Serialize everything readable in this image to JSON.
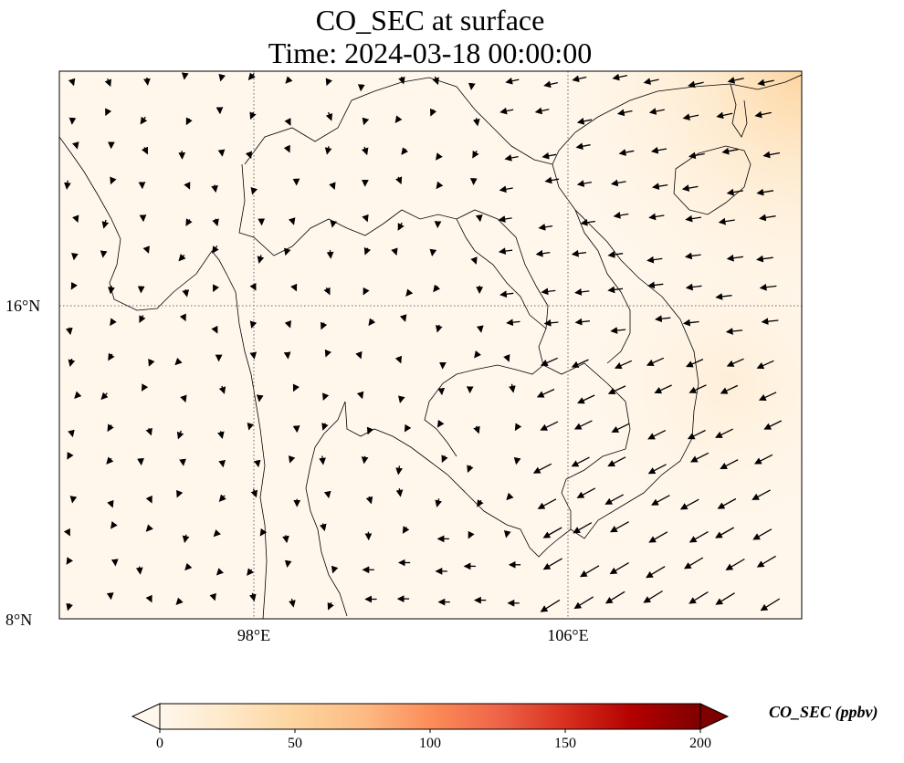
{
  "title": {
    "line1": "CO_SEC at surface",
    "line2": "Time: 2024-03-18 00:00:00"
  },
  "axes": {
    "lat_labels": [
      "16°N",
      "8°N"
    ],
    "lon_labels": [
      "98°E",
      "106°E"
    ]
  },
  "colorbar": {
    "label": "CO_SEC (ppbv)",
    "ticks": [
      "0",
      "50",
      "100",
      "150",
      "200"
    ],
    "range": [
      0,
      200
    ],
    "extend": "both",
    "colormap": "OrRd",
    "colors": [
      "#fff7ec",
      "#fee8c8",
      "#fdd49e",
      "#fdbb84",
      "#fc8d59",
      "#ef6548",
      "#d7301f",
      "#b30000",
      "#7f0000"
    ]
  },
  "chart_data": {
    "type": "heatmap",
    "variable": "CO_SEC",
    "units": "ppbv",
    "level": "surface",
    "time": "2024-03-18 00:00:00",
    "lon_range": [
      93,
      112
    ],
    "lat_range": [
      8,
      22
    ],
    "gridlines": {
      "lon": [
        98,
        106
      ],
      "lat": [
        16,
        8
      ],
      "style": "dotted"
    },
    "field": "low concentrations (~0-20 ppbv) nearly everywhere; slight increase (~20-30 ppbv) toward the northeast corner near the Gulf of Tonkin/Hainan",
    "wind_vectors": true
  }
}
